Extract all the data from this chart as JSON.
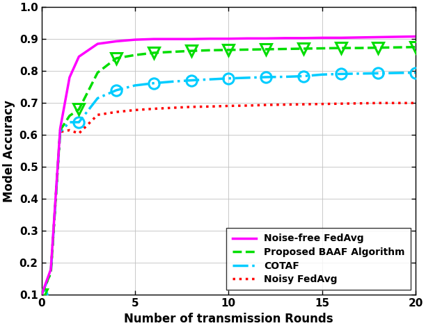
{
  "title": "",
  "xlabel": "Number of transmission Rounds",
  "ylabel": "Model Accuracy",
  "xlim": [
    0,
    20
  ],
  "ylim": [
    0.1,
    1.0
  ],
  "yticks": [
    0.1,
    0.2,
    0.3,
    0.4,
    0.5,
    0.6,
    0.7,
    0.8,
    0.9,
    1.0
  ],
  "xticks": [
    0,
    5,
    10,
    15,
    20
  ],
  "noise_free_fedavg": {
    "x": [
      0,
      0.5,
      1,
      1.5,
      2,
      3,
      4,
      5,
      6,
      7,
      8,
      9,
      10,
      11,
      12,
      13,
      14,
      15,
      16,
      17,
      18,
      19,
      20
    ],
    "y": [
      0.1,
      0.18,
      0.62,
      0.78,
      0.845,
      0.885,
      0.893,
      0.898,
      0.9,
      0.9,
      0.9,
      0.901,
      0.901,
      0.902,
      0.902,
      0.903,
      0.903,
      0.904,
      0.904,
      0.905,
      0.906,
      0.907,
      0.908
    ],
    "color": "#FF00FF",
    "linestyle": "-",
    "linewidth": 2.5,
    "label": "Noise-free FedAvg"
  },
  "proposed_baaf": {
    "x": [
      0,
      0.5,
      1,
      1.5,
      2,
      3,
      4,
      5,
      6,
      7,
      8,
      9,
      10,
      11,
      12,
      13,
      14,
      15,
      16,
      17,
      18,
      19,
      20
    ],
    "y": [
      0.1,
      0.17,
      0.615,
      0.66,
      0.68,
      0.795,
      0.84,
      0.85,
      0.857,
      0.86,
      0.863,
      0.865,
      0.866,
      0.867,
      0.868,
      0.869,
      0.87,
      0.871,
      0.872,
      0.872,
      0.873,
      0.874,
      0.875
    ],
    "marker_x": [
      0,
      2,
      4,
      6,
      8,
      10,
      12,
      14,
      16,
      18,
      20
    ],
    "marker_y": [
      0.1,
      0.68,
      0.84,
      0.857,
      0.863,
      0.866,
      0.868,
      0.87,
      0.872,
      0.873,
      0.875
    ],
    "color": "#00DD00",
    "linestyle": "--",
    "linewidth": 2.5,
    "marker": "v",
    "markersize": 11,
    "label": "Proposed BAAF Algorithm"
  },
  "cotaf": {
    "x": [
      0,
      0.5,
      1,
      1.5,
      2,
      3,
      4,
      5,
      6,
      7,
      8,
      9,
      10,
      11,
      12,
      13,
      14,
      15,
      16,
      17,
      18,
      19,
      20
    ],
    "y": [
      0.1,
      0.17,
      0.61,
      0.64,
      0.64,
      0.715,
      0.74,
      0.755,
      0.762,
      0.767,
      0.771,
      0.774,
      0.777,
      0.779,
      0.781,
      0.782,
      0.784,
      0.789,
      0.791,
      0.792,
      0.793,
      0.794,
      0.795
    ],
    "marker_x": [
      0,
      2,
      4,
      6,
      8,
      10,
      12,
      14,
      16,
      18,
      20
    ],
    "marker_y": [
      0.1,
      0.64,
      0.74,
      0.762,
      0.771,
      0.777,
      0.781,
      0.784,
      0.791,
      0.793,
      0.795
    ],
    "color": "#00CCFF",
    "linestyle": "-.",
    "linewidth": 2.5,
    "marker": "o",
    "markersize": 11,
    "label": "COTAF"
  },
  "noisy_fedavg": {
    "x": [
      0,
      0.5,
      1,
      1.5,
      2,
      3,
      4,
      5,
      6,
      7,
      8,
      9,
      10,
      11,
      12,
      13,
      14,
      15,
      16,
      17,
      18,
      19,
      20
    ],
    "y": [
      0.1,
      0.17,
      0.61,
      0.615,
      0.605,
      0.663,
      0.672,
      0.678,
      0.682,
      0.685,
      0.688,
      0.689,
      0.691,
      0.692,
      0.694,
      0.695,
      0.696,
      0.697,
      0.698,
      0.699,
      0.7,
      0.7,
      0.7
    ],
    "color": "#FF0000",
    "linestyle": ":",
    "linewidth": 2.5,
    "label": "Noisy FedAvg"
  },
  "figsize": [
    6.12,
    4.72
  ],
  "dpi": 100
}
